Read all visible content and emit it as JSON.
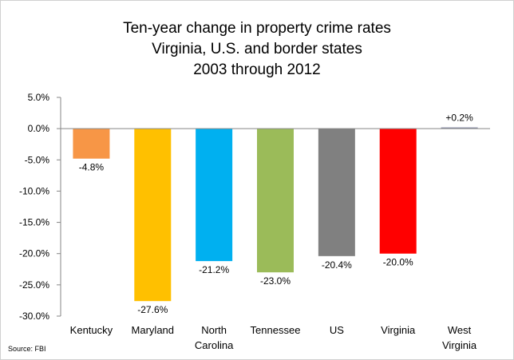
{
  "chart_data": {
    "type": "bar",
    "title_lines": [
      "Ten-year change in property crime rates",
      "Virginia, U.S. and border states",
      "2003 through 2012"
    ],
    "categories": [
      "Kentucky",
      "Maryland",
      "North Carolina",
      "Tennessee",
      "US",
      "Virginia",
      "West Virginia"
    ],
    "category_lines": [
      [
        "Kentucky"
      ],
      [
        "Maryland"
      ],
      [
        "North",
        "Carolina"
      ],
      [
        "Tennessee"
      ],
      [
        "US"
      ],
      [
        "Virginia"
      ],
      [
        "West",
        "Virginia"
      ]
    ],
    "values": [
      -4.8,
      -27.6,
      -21.2,
      -23.0,
      -20.4,
      -20.0,
      0.2
    ],
    "data_labels": [
      "-4.8%",
      "-27.6%",
      "-21.2%",
      "-23.0%",
      "-20.4%",
      "-20.0%",
      "+0.2%"
    ],
    "colors": [
      "#F79646",
      "#FFC000",
      "#00B0F0",
      "#9BBB59",
      "#808080",
      "#FF0000",
      "#8B8FA8"
    ],
    "ylim": [
      -30,
      5
    ],
    "yticks": [
      5,
      0,
      -5,
      -10,
      -15,
      -20,
      -25,
      -30
    ],
    "ytick_labels": [
      "5.0%",
      "0.0%",
      "-5.0%",
      "-10.0%",
      "-15.0%",
      "-20.0%",
      "-25.0%",
      "-30.0%"
    ],
    "grid": false,
    "legend": "none"
  },
  "source": "Source:  FBI"
}
